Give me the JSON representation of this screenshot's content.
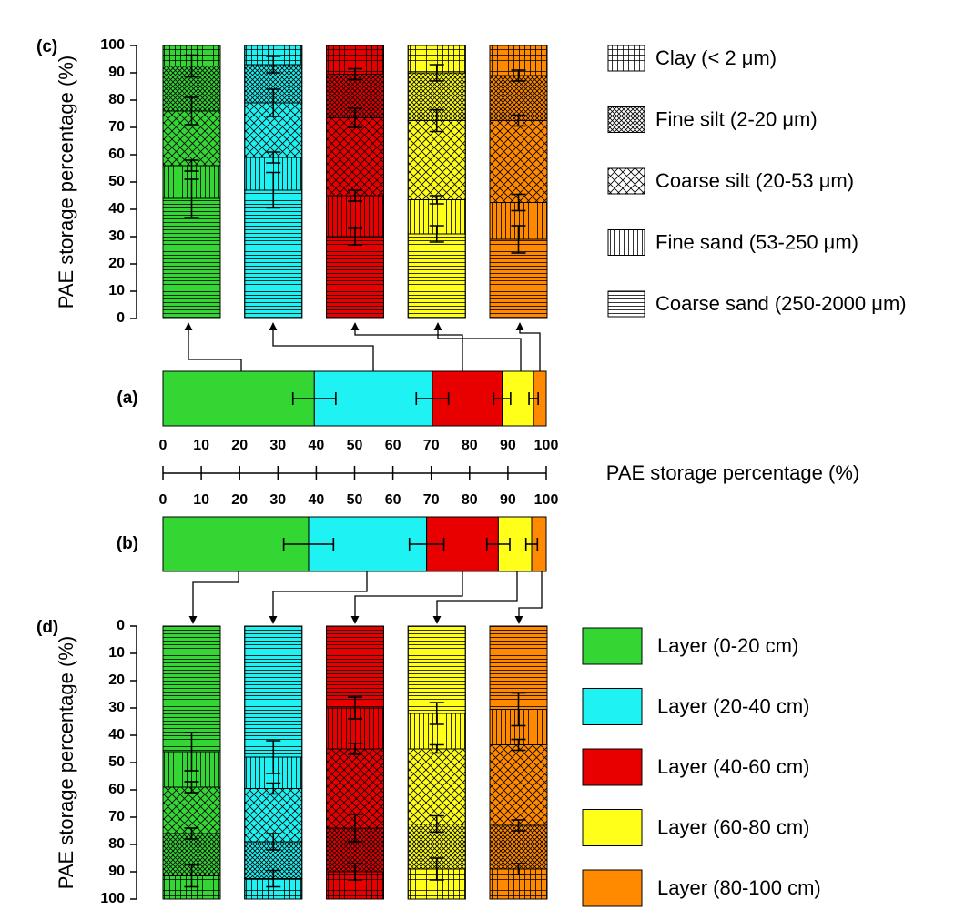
{
  "chart_data": [
    {
      "type": "stacked-column",
      "title": "(c)",
      "ylabel": "PAE storage percentage (%)",
      "categories": [
        null,
        null,
        null,
        null,
        null
      ],
      "colors": [
        "#33d633",
        "#1ef2f2",
        "#e80000",
        "#ffff1a",
        "#ff8a00"
      ],
      "ylim": [
        0,
        100
      ],
      "yticks": [
        0,
        10,
        20,
        30,
        40,
        50,
        60,
        70,
        80,
        90,
        100
      ],
      "series": [
        {
          "name": "Coarse sand (250-2000 μm)",
          "pattern": "hlines",
          "values": [
            44,
            47,
            30,
            31,
            29
          ],
          "errors": [
            7,
            6.5,
            3,
            3,
            5
          ]
        },
        {
          "name": "Fine sand (53-250 μm)",
          "pattern": "vlines",
          "values": [
            12,
            12,
            15,
            12.5,
            13.5
          ],
          "errors": [
            2,
            2,
            2,
            1.5,
            3
          ]
        },
        {
          "name": "Coarse silt (20-53 μm)",
          "pattern": "cross-wide",
          "values": [
            20,
            20,
            28.5,
            29,
            30
          ],
          "errors": [
            5,
            5,
            3.5,
            4,
            2
          ]
        },
        {
          "name": "Fine silt (2-20 μm)",
          "pattern": "cross-dense",
          "values": [
            16.5,
            14,
            16,
            17.5,
            16.5
          ],
          "errors": [
            4,
            3,
            2,
            3,
            2
          ]
        },
        {
          "name": "Clay (< 2 μm)",
          "pattern": "grid",
          "values": [
            7.5,
            7,
            10.5,
            10,
            11
          ]
        }
      ]
    },
    {
      "type": "stacked-hbar",
      "title": "(a)",
      "xlabel": "PAE storage percentage (%)",
      "xlim": [
        0,
        100
      ],
      "xticks": [
        0,
        10,
        20,
        30,
        40,
        50,
        60,
        70,
        80,
        90,
        100
      ],
      "series": [
        {
          "name": "Layer (0-20 cm)",
          "color": "#33d633",
          "values": [
            39.5
          ],
          "errors": [
            5.6
          ]
        },
        {
          "name": "Layer (20-40 cm)",
          "color": "#1ef2f2",
          "values": [
            30.8
          ],
          "errors": [
            4.2
          ]
        },
        {
          "name": "Layer (40-60 cm)",
          "color": "#e80000",
          "values": [
            18.2
          ],
          "errors": [
            2.2
          ]
        },
        {
          "name": "Layer (60-80 cm)",
          "color": "#ffff1a",
          "values": [
            8.2
          ],
          "errors": [
            1.2
          ]
        },
        {
          "name": "Layer (80-100 cm)",
          "color": "#ff8a00",
          "values": [
            3.3
          ]
        }
      ]
    },
    {
      "type": "stacked-hbar",
      "title": "(b)",
      "xlim": [
        0,
        100
      ],
      "xticks": [
        0,
        10,
        20,
        30,
        40,
        50,
        60,
        70,
        80,
        90,
        100
      ],
      "series": [
        {
          "color": "#33d633",
          "values": [
            38
          ],
          "errors": [
            6.5
          ]
        },
        {
          "color": "#1ef2f2",
          "values": [
            30.8
          ],
          "errors": [
            4.5
          ]
        },
        {
          "color": "#e80000",
          "values": [
            18.7
          ],
          "errors": [
            3
          ]
        },
        {
          "color": "#ffff1a",
          "values": [
            8.7
          ],
          "errors": [
            1.5
          ]
        },
        {
          "color": "#ff8a00",
          "values": [
            3.8
          ]
        }
      ]
    },
    {
      "type": "stacked-column",
      "title": "(d)",
      "ylabel": "PAE storage percentage (%)",
      "inverted": true,
      "categories": [
        null,
        null,
        null,
        null,
        null
      ],
      "colors": [
        "#33d633",
        "#1ef2f2",
        "#e80000",
        "#ffff1a",
        "#ff8a00"
      ],
      "ylim": [
        0,
        100
      ],
      "yticks": [
        0,
        10,
        20,
        30,
        40,
        50,
        60,
        70,
        80,
        90,
        100
      ],
      "series": [
        {
          "pattern": "hlines",
          "values": [
            46,
            48,
            30,
            32,
            30.5
          ],
          "errors": [
            7,
            6,
            4,
            4,
            6
          ]
        },
        {
          "pattern": "vlines",
          "values": [
            13,
            11.5,
            15,
            13,
            13
          ],
          "errors": [
            2,
            2,
            2,
            1.5,
            2
          ]
        },
        {
          "pattern": "cross-wide",
          "values": [
            17,
            19.5,
            29,
            27.5,
            29.5
          ],
          "errors": [
            2,
            3,
            5,
            3,
            2
          ]
        },
        {
          "pattern": "cross-dense",
          "values": [
            15.5,
            13.5,
            16,
            16.5,
            16
          ],
          "errors": [
            4,
            3,
            3,
            4,
            2
          ]
        },
        {
          "pattern": "grid",
          "values": [
            8.5,
            7.5,
            10,
            11,
            11
          ]
        }
      ]
    }
  ]
}
